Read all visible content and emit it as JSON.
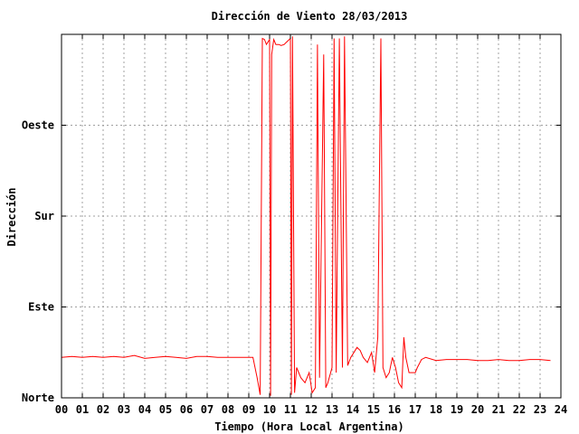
{
  "chart_data": {
    "type": "line",
    "title": "Dirección de Viento 28/03/2013",
    "xlabel": "Tiempo (Hora Local Argentina)",
    "ylabel": "Dirección",
    "xlim": [
      0,
      24
    ],
    "ylim": [
      0,
      360
    ],
    "x_tick_labels": [
      "00",
      "01",
      "02",
      "03",
      "04",
      "05",
      "06",
      "07",
      "08",
      "09",
      "10",
      "11",
      "12",
      "13",
      "14",
      "15",
      "16",
      "17",
      "18",
      "19",
      "20",
      "21",
      "22",
      "23",
      "24"
    ],
    "y_ticks": [
      {
        "value": 0,
        "label": "Norte"
      },
      {
        "value": 90,
        "label": "Este"
      },
      {
        "value": 180,
        "label": "Sur"
      },
      {
        "value": 270,
        "label": "Oeste"
      }
    ],
    "grid": true,
    "line_color": "#ff0000",
    "grid_color": "#a0a0a0",
    "axis_color": "#000000",
    "series": [
      {
        "values": [
          [
            0.0,
            40
          ],
          [
            0.5,
            41
          ],
          [
            1.0,
            40
          ],
          [
            1.5,
            41
          ],
          [
            2.0,
            40
          ],
          [
            2.5,
            41
          ],
          [
            3.0,
            40
          ],
          [
            3.5,
            42
          ],
          [
            4.0,
            39
          ],
          [
            4.5,
            40
          ],
          [
            5.0,
            41
          ],
          [
            5.5,
            40
          ],
          [
            6.0,
            39
          ],
          [
            6.5,
            41
          ],
          [
            7.0,
            41
          ],
          [
            7.5,
            40
          ],
          [
            8.0,
            40
          ],
          [
            8.5,
            40
          ],
          [
            9.0,
            40
          ],
          [
            9.2,
            40
          ],
          [
            9.4,
            20
          ],
          [
            9.55,
            3
          ],
          [
            9.65,
            356
          ],
          [
            9.75,
            355
          ],
          [
            9.85,
            350
          ],
          [
            10.0,
            355
          ],
          [
            10.05,
            2
          ],
          [
            10.1,
            340
          ],
          [
            10.2,
            355
          ],
          [
            10.3,
            350
          ],
          [
            10.45,
            350
          ],
          [
            10.55,
            349
          ],
          [
            10.7,
            350
          ],
          [
            10.8,
            352
          ],
          [
            11.0,
            356
          ],
          [
            11.05,
            3
          ],
          [
            11.1,
            358
          ],
          [
            11.2,
            5
          ],
          [
            11.3,
            30
          ],
          [
            11.5,
            20
          ],
          [
            11.7,
            15
          ],
          [
            11.9,
            25
          ],
          [
            12.05,
            5
          ],
          [
            12.2,
            10
          ],
          [
            12.3,
            350
          ],
          [
            12.4,
            20
          ],
          [
            12.6,
            340
          ],
          [
            12.7,
            10
          ],
          [
            12.8,
            15
          ],
          [
            13.0,
            30
          ],
          [
            13.1,
            356
          ],
          [
            13.2,
            25
          ],
          [
            13.35,
            356
          ],
          [
            13.5,
            30
          ],
          [
            13.6,
            358
          ],
          [
            13.75,
            32
          ],
          [
            13.9,
            40
          ],
          [
            14.05,
            45
          ],
          [
            14.2,
            50
          ],
          [
            14.35,
            47
          ],
          [
            14.5,
            40
          ],
          [
            14.7,
            35
          ],
          [
            14.9,
            45
          ],
          [
            15.05,
            25
          ],
          [
            15.2,
            60
          ],
          [
            15.35,
            356
          ],
          [
            15.45,
            30
          ],
          [
            15.6,
            20
          ],
          [
            15.75,
            25
          ],
          [
            15.9,
            40
          ],
          [
            16.05,
            30
          ],
          [
            16.2,
            15
          ],
          [
            16.35,
            10
          ],
          [
            16.45,
            60
          ],
          [
            16.55,
            40
          ],
          [
            16.7,
            25
          ],
          [
            16.9,
            25
          ],
          [
            17.0,
            25
          ],
          [
            17.1,
            30
          ],
          [
            17.3,
            38
          ],
          [
            17.5,
            40
          ],
          [
            18.0,
            37
          ],
          [
            18.5,
            38
          ],
          [
            19.0,
            38
          ],
          [
            19.5,
            38
          ],
          [
            20.0,
            37
          ],
          [
            20.5,
            37
          ],
          [
            21.0,
            38
          ],
          [
            21.5,
            37
          ],
          [
            22.0,
            37
          ],
          [
            22.5,
            38
          ],
          [
            23.0,
            38
          ],
          [
            23.5,
            37
          ]
        ]
      }
    ]
  }
}
